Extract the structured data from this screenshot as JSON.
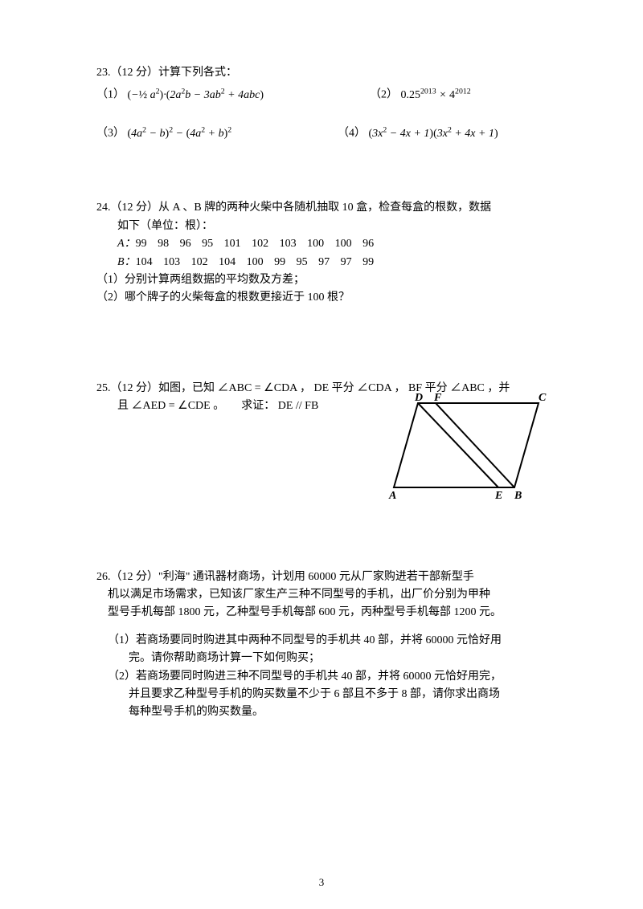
{
  "page_number": "3",
  "q23": {
    "head": "23.（12 分）计算下列各式：",
    "s1_label": "（1）",
    "s1_expr_html": "<span class='mathup'>(</span>−<span class='mathup'>½</span> a<sup>2</sup><span class='mathup'>)</span>·<span class='mathup'>(</span>2a<sup>2</sup>b − 3ab<sup>2</sup> + 4abc<span class='mathup'>)</span>",
    "s2_label": "（2）",
    "s2_expr_html": "<span class='mathup'>0.25</span><sup>2013</sup> × <span class='mathup'>4</span><sup>2012</sup>",
    "s3_label": "（3）",
    "s3_expr_html": "<span class='mathup'>(</span>4a<sup>2</sup> − b<span class='mathup'>)</span><sup>2</sup> − <span class='mathup'>(</span>4a<sup>2</sup> + b<span class='mathup'>)</span><sup>2</sup>",
    "s4_label": "（4）",
    "s4_expr_html": "<span class='mathup'>(</span>3x<sup>2</sup> − 4x + 1<span class='mathup'>)(</span>3x<sup>2</sup> + 4x + 1<span class='mathup'>)</span>"
  },
  "q24": {
    "head": "24.（12 分）从 A 、B 牌的两种火柴中各随机抽取 10 盒，检查每盒的根数，数据",
    "head2": "如下（单位：根）：",
    "rowA_label": "A：",
    "rowA_data": "99  98  96  95  101  102  103  100  100  96",
    "rowB_label": "B：",
    "rowB_data": "104  103  102  104  100  99  95  97  97  99",
    "p1": "（1）分别计算两组数据的平均数及方差；",
    "p2": "（2）哪个牌子的火柴每盒的根数更接近于 100 根？"
  },
  "q25": {
    "head1": "25.（12 分）如图，已知 ∠ABC = ∠CDA ， DE 平分 ∠CDA ， BF 平分 ∠ABC ，并",
    "head2": "且 ∠AED = ∠CDE 。　　求证： DE // FB",
    "labels": {
      "D": "D",
      "F": "F",
      "C": "C",
      "A": "A",
      "E": "E",
      "B": "B"
    }
  },
  "q26": {
    "head1": "26.（12 分）\"利海\" 通讯器材商场，计划用 60000 元从厂家购进若干部新型手",
    "head2": "机以满足市场需求，已知该厂家生产三种不同型号的手机，出厂价分别为甲种",
    "head3": "型号手机每部 1800 元，乙种型号手机每部 600 元，丙种型号手机每部 1200 元。",
    "p1a": "（1）若商场要同时购进其中两种不同型号的手机共 40 部，并将 60000 元恰好用",
    "p1b": "完。请你帮助商场计算一下如何购买；",
    "p2a": "（2）若商场要同时购进三种不同型号的手机共 40 部，并将 60000 元恰好用完，",
    "p2b": "并且要求乙种型号手机的购买数量不少于 6 部且不多于 8 部，请你求出商场",
    "p2c": "每种型号手机的购买数量。"
  },
  "colors": {
    "text": "#000000",
    "bg": "#ffffff",
    "line": "#000000"
  }
}
